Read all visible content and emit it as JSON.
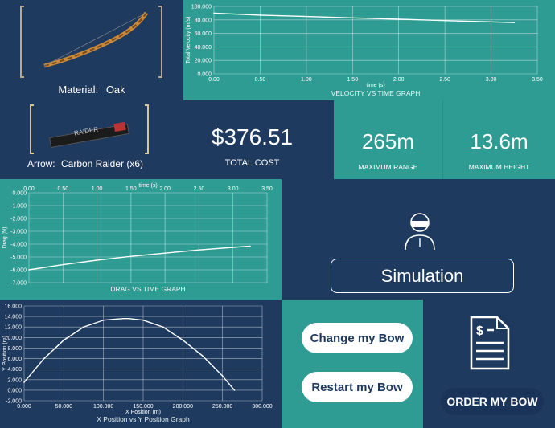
{
  "bow": {
    "material_label": "Material:",
    "material_value": "Oak"
  },
  "arrow": {
    "label": "Arrow:",
    "value": "Carbon Raider (x6)",
    "brand_text": "RAIDER"
  },
  "cost": {
    "value": "$376.51",
    "label": "TOTAL COST"
  },
  "range": {
    "value": "265m",
    "label": "MAXIMUM RANGE"
  },
  "height": {
    "value": "13.6m",
    "label": "MAXIMUM HEIGHT"
  },
  "simulation": {
    "button_label": "Simulation"
  },
  "actions": {
    "change_label": "Change my Bow",
    "restart_label": "Restart my Bow",
    "order_label": "ORDER MY BOW"
  },
  "chart_data": [
    {
      "type": "line",
      "title": "VELOCITY VS TIME GRAPH",
      "xlabel": "time (s)",
      "ylabel": "Total Velocity (m/s)",
      "xlim": [
        0,
        3.5
      ],
      "ylim": [
        0,
        100
      ],
      "x_ticks": [
        "0.00",
        "0.50",
        "1.00",
        "1.50",
        "2.00",
        "2.50",
        "3.00",
        "3.50"
      ],
      "y_ticks": [
        "0.000",
        "20.000",
        "40.000",
        "60.000",
        "80.000",
        "100.000"
      ],
      "grid": true,
      "series": [
        {
          "x": [
            0,
            0.5,
            1.0,
            1.5,
            2.0,
            2.5,
            3.0,
            3.25
          ],
          "y": [
            90,
            87,
            85,
            83,
            81,
            79,
            77,
            76
          ]
        }
      ]
    },
    {
      "type": "line",
      "title": "DRAG VS TIME GRAPH",
      "xlabel": "time (s)",
      "ylabel": "Drag (N)",
      "xlim": [
        0,
        3.5
      ],
      "ylim": [
        -7,
        0
      ],
      "x_ticks": [
        "0.00",
        "0.50",
        "1.00",
        "1.50",
        "2.00",
        "2.50",
        "3.00",
        "3.50"
      ],
      "y_ticks": [
        "0.000",
        "-1.000",
        "-2.000",
        "-3.000",
        "-4.000",
        "-5.000",
        "-6.000",
        "-7.000"
      ],
      "grid": true,
      "series": [
        {
          "x": [
            0,
            0.5,
            1.0,
            1.5,
            2.0,
            2.5,
            3.0,
            3.25
          ],
          "y": [
            -6.0,
            -5.6,
            -5.25,
            -4.95,
            -4.7,
            -4.45,
            -4.25,
            -4.15
          ]
        }
      ]
    },
    {
      "type": "line",
      "title": "X Position vs Y Position Graph",
      "xlabel": "X Position (m)",
      "ylabel": "Y Position (m)",
      "xlim": [
        0,
        300
      ],
      "ylim": [
        -2,
        16
      ],
      "x_ticks": [
        "0.000",
        "50.000",
        "100.000",
        "150.000",
        "200.000",
        "250.000",
        "300.000"
      ],
      "y_ticks": [
        "16.000",
        "14.000",
        "12.000",
        "10.000",
        "8.000",
        "6.000",
        "4.000",
        "2.000",
        "0.000",
        "-2.000"
      ],
      "grid": true,
      "series": [
        {
          "x": [
            0,
            25,
            50,
            75,
            100,
            125,
            132,
            150,
            175,
            200,
            225,
            250,
            265
          ],
          "y": [
            1.5,
            6.0,
            9.5,
            12.0,
            13.3,
            13.6,
            13.6,
            13.3,
            12.0,
            9.5,
            6.5,
            2.7,
            0
          ]
        }
      ]
    }
  ]
}
